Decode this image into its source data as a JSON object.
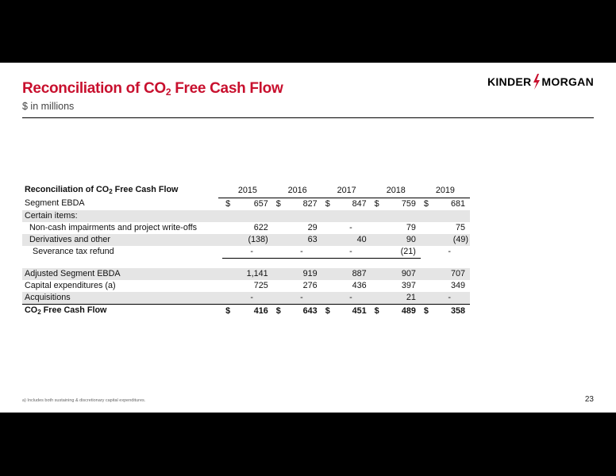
{
  "slide": {
    "title_main": "Reconciliation of CO",
    "title_sub": "2",
    "title_rest": " Free Cash Flow",
    "subtitle": "$ in millions",
    "logo_left": "KINDER",
    "logo_right": "MORGAN",
    "footnote": "a) Includes both sustaining & discretionary capital expenditures.",
    "page_number": "23"
  },
  "table": {
    "header_main": "Reconciliation of CO",
    "header_sub": "2",
    "header_rest": " Free Cash Flow",
    "years": [
      "2015",
      "2016",
      "2017",
      "2018",
      "2019"
    ],
    "rows": [
      {
        "label": "Segment EBDA",
        "values": [
          "657",
          "827",
          "847",
          "759",
          "681"
        ],
        "dollar": "$"
      },
      {
        "label": "Certain items:",
        "values": [
          "",
          "",
          "",
          "",
          ""
        ]
      },
      {
        "label": "Non-cash impairments and project write-offs",
        "values": [
          "622",
          "29",
          "-",
          "79",
          "75"
        ]
      },
      {
        "label": "Derivatives and other",
        "values": [
          "(138)",
          "63",
          "40",
          "90",
          "(49)"
        ]
      },
      {
        "label": "Severance tax refund",
        "values": [
          "-",
          "-",
          "-",
          "(21)",
          "-"
        ]
      },
      {
        "label": "Adjusted Segment EBDA",
        "values": [
          "1,141",
          "919",
          "887",
          "907",
          "707"
        ]
      },
      {
        "label": "Capital expenditures (a)",
        "values": [
          "725",
          "276",
          "436",
          "397",
          "349"
        ]
      },
      {
        "label": "Acquisitions",
        "values": [
          "-",
          "-",
          "-",
          "21",
          "-"
        ]
      },
      {
        "label_main": "CO",
        "label_sub": "2",
        "label_rest": " Free Cash Flow",
        "values": [
          "416",
          "643",
          "451",
          "489",
          "358"
        ],
        "dollar": "$"
      }
    ]
  },
  "colors": {
    "accent": "#c8102e",
    "shade": "#e5e5e5"
  }
}
